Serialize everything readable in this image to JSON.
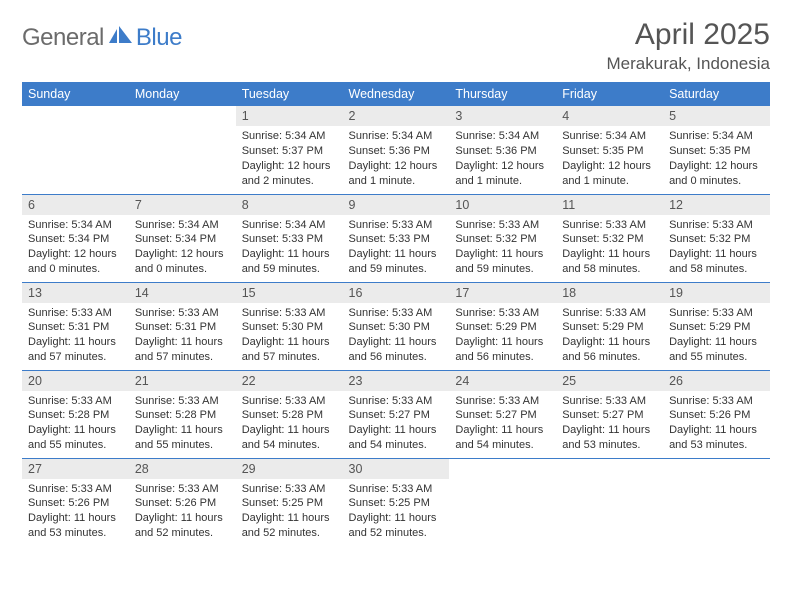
{
  "brand": {
    "general": "General",
    "blue": "Blue"
  },
  "title": "April 2025",
  "location": "Merakurak, Indonesia",
  "colors": {
    "header_bg": "#3d7cc9",
    "header_text": "#ffffff",
    "daynum_bg": "#ebebeb",
    "rule": "#3d7cc9",
    "text": "#333333",
    "muted": "#555555",
    "logo_gray": "#6b6b6b",
    "logo_blue": "#3d7cc9"
  },
  "weekdays": [
    "Sunday",
    "Monday",
    "Tuesday",
    "Wednesday",
    "Thursday",
    "Friday",
    "Saturday"
  ],
  "weeks": [
    [
      null,
      null,
      {
        "n": "1",
        "sr": "5:34 AM",
        "ss": "5:37 PM",
        "dl": "12 hours and 2 minutes."
      },
      {
        "n": "2",
        "sr": "5:34 AM",
        "ss": "5:36 PM",
        "dl": "12 hours and 1 minute."
      },
      {
        "n": "3",
        "sr": "5:34 AM",
        "ss": "5:36 PM",
        "dl": "12 hours and 1 minute."
      },
      {
        "n": "4",
        "sr": "5:34 AM",
        "ss": "5:35 PM",
        "dl": "12 hours and 1 minute."
      },
      {
        "n": "5",
        "sr": "5:34 AM",
        "ss": "5:35 PM",
        "dl": "12 hours and 0 minutes."
      }
    ],
    [
      {
        "n": "6",
        "sr": "5:34 AM",
        "ss": "5:34 PM",
        "dl": "12 hours and 0 minutes."
      },
      {
        "n": "7",
        "sr": "5:34 AM",
        "ss": "5:34 PM",
        "dl": "12 hours and 0 minutes."
      },
      {
        "n": "8",
        "sr": "5:34 AM",
        "ss": "5:33 PM",
        "dl": "11 hours and 59 minutes."
      },
      {
        "n": "9",
        "sr": "5:33 AM",
        "ss": "5:33 PM",
        "dl": "11 hours and 59 minutes."
      },
      {
        "n": "10",
        "sr": "5:33 AM",
        "ss": "5:32 PM",
        "dl": "11 hours and 59 minutes."
      },
      {
        "n": "11",
        "sr": "5:33 AM",
        "ss": "5:32 PM",
        "dl": "11 hours and 58 minutes."
      },
      {
        "n": "12",
        "sr": "5:33 AM",
        "ss": "5:32 PM",
        "dl": "11 hours and 58 minutes."
      }
    ],
    [
      {
        "n": "13",
        "sr": "5:33 AM",
        "ss": "5:31 PM",
        "dl": "11 hours and 57 minutes."
      },
      {
        "n": "14",
        "sr": "5:33 AM",
        "ss": "5:31 PM",
        "dl": "11 hours and 57 minutes."
      },
      {
        "n": "15",
        "sr": "5:33 AM",
        "ss": "5:30 PM",
        "dl": "11 hours and 57 minutes."
      },
      {
        "n": "16",
        "sr": "5:33 AM",
        "ss": "5:30 PM",
        "dl": "11 hours and 56 minutes."
      },
      {
        "n": "17",
        "sr": "5:33 AM",
        "ss": "5:29 PM",
        "dl": "11 hours and 56 minutes."
      },
      {
        "n": "18",
        "sr": "5:33 AM",
        "ss": "5:29 PM",
        "dl": "11 hours and 56 minutes."
      },
      {
        "n": "19",
        "sr": "5:33 AM",
        "ss": "5:29 PM",
        "dl": "11 hours and 55 minutes."
      }
    ],
    [
      {
        "n": "20",
        "sr": "5:33 AM",
        "ss": "5:28 PM",
        "dl": "11 hours and 55 minutes."
      },
      {
        "n": "21",
        "sr": "5:33 AM",
        "ss": "5:28 PM",
        "dl": "11 hours and 55 minutes."
      },
      {
        "n": "22",
        "sr": "5:33 AM",
        "ss": "5:28 PM",
        "dl": "11 hours and 54 minutes."
      },
      {
        "n": "23",
        "sr": "5:33 AM",
        "ss": "5:27 PM",
        "dl": "11 hours and 54 minutes."
      },
      {
        "n": "24",
        "sr": "5:33 AM",
        "ss": "5:27 PM",
        "dl": "11 hours and 54 minutes."
      },
      {
        "n": "25",
        "sr": "5:33 AM",
        "ss": "5:27 PM",
        "dl": "11 hours and 53 minutes."
      },
      {
        "n": "26",
        "sr": "5:33 AM",
        "ss": "5:26 PM",
        "dl": "11 hours and 53 minutes."
      }
    ],
    [
      {
        "n": "27",
        "sr": "5:33 AM",
        "ss": "5:26 PM",
        "dl": "11 hours and 53 minutes."
      },
      {
        "n": "28",
        "sr": "5:33 AM",
        "ss": "5:26 PM",
        "dl": "11 hours and 52 minutes."
      },
      {
        "n": "29",
        "sr": "5:33 AM",
        "ss": "5:25 PM",
        "dl": "11 hours and 52 minutes."
      },
      {
        "n": "30",
        "sr": "5:33 AM",
        "ss": "5:25 PM",
        "dl": "11 hours and 52 minutes."
      },
      null,
      null,
      null
    ]
  ],
  "labels": {
    "sunrise": "Sunrise:",
    "sunset": "Sunset:",
    "daylight": "Daylight:"
  }
}
